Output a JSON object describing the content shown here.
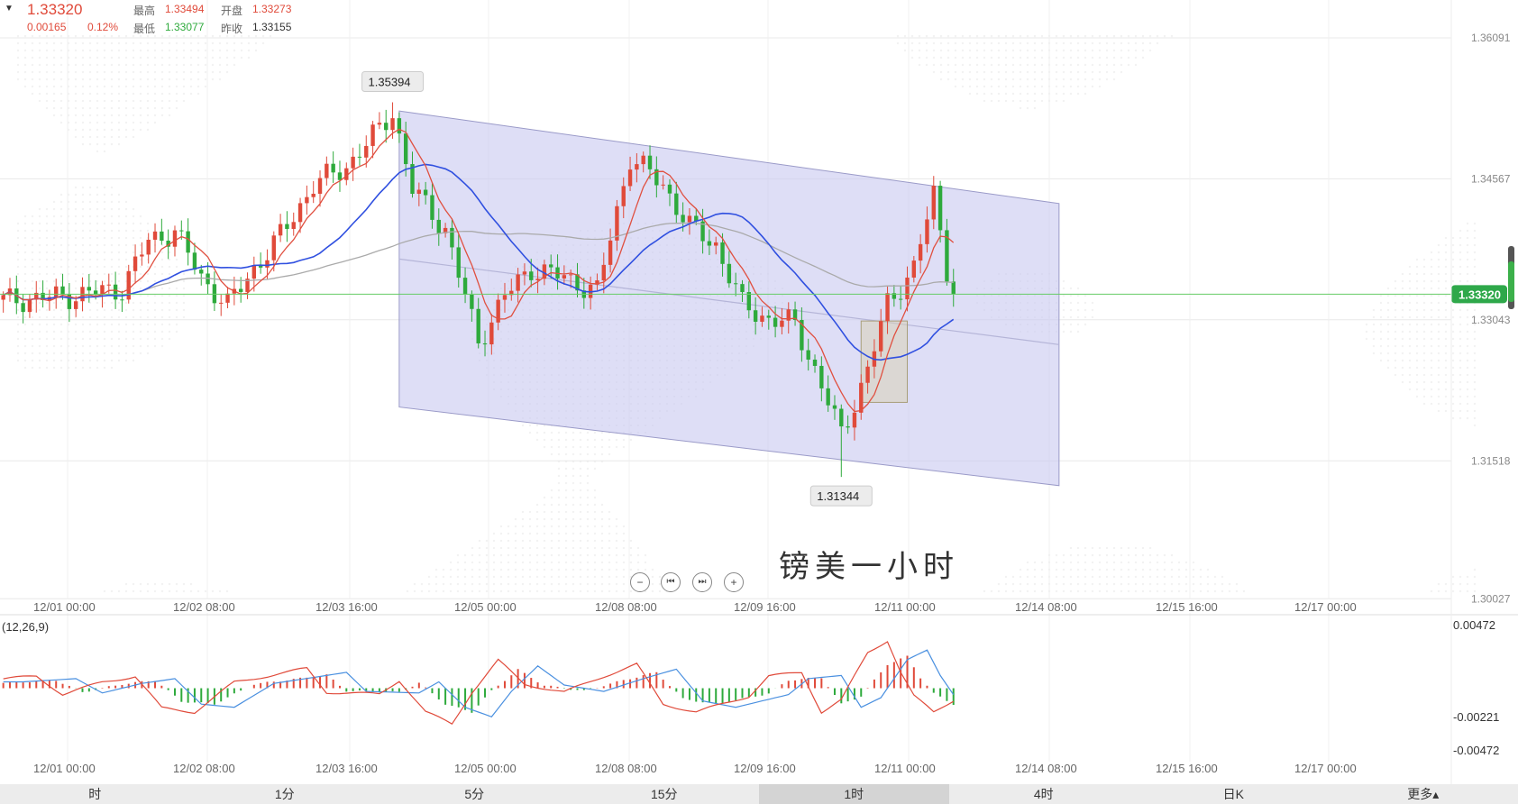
{
  "header": {
    "price": "1.33320",
    "change": "0.00165",
    "change_pct": "0.12%",
    "high_label": "最高",
    "high": "1.33494",
    "open_label": "开盘",
    "open": "1.33273",
    "low_label": "最低",
    "low": "1.33077",
    "prev_close_label": "昨收",
    "prev_close": "1.33155"
  },
  "chart_title": "镑美一小时",
  "price_axis_ticks": [
    "1.36091",
    "1.34567",
    "1.33043",
    "1.31518",
    "1.30027"
  ],
  "current_price_tag": "1.33320",
  "annotations": {
    "high_marker": "1.35394",
    "low_marker": "1.31344"
  },
  "time_labels": [
    "12/01 00:00",
    "12/02 08:00",
    "12/03 16:00",
    "12/05 00:00",
    "12/08 08:00",
    "12/09 16:00",
    "12/11 00:00",
    "12/14 08:00",
    "12/15 16:00",
    "12/17 00:00"
  ],
  "macd": {
    "label": "(12,26,9)",
    "axis_ticks": [
      "0.00472",
      "-0.00221",
      "-0.00472"
    ]
  },
  "controls": {
    "zoom_out": "−",
    "prev": "⏮",
    "next": "⏭",
    "zoom_in": "+"
  },
  "timeframes": [
    {
      "label": "时",
      "active": false
    },
    {
      "label": "1分",
      "active": false
    },
    {
      "label": "5分",
      "active": false
    },
    {
      "label": "15分",
      "active": false
    },
    {
      "label": "1时",
      "active": true
    },
    {
      "label": "4时",
      "active": false
    },
    {
      "label": "日K",
      "active": false
    },
    {
      "label": "更多▴",
      "active": false
    }
  ],
  "colors": {
    "up": "#e04a3a",
    "down": "#2eaa3c",
    "ma_short": "#e05040",
    "ma_mid": "#3050e0",
    "ma_long": "#aaaaaa",
    "channel": "#c8c8f0",
    "price_line": "#66cc66"
  },
  "chart_data": {
    "type": "candlestick",
    "title": "镑美一小时",
    "ylim": [
      1.3003,
      1.365
    ],
    "x_labels": [
      "12/01 00:00",
      "12/02 08:00",
      "12/03 16:00",
      "12/05 00:00",
      "12/08 08:00",
      "12/09 16:00",
      "12/11 00:00",
      "12/14 08:00",
      "12/15 16:00",
      "12/17 00:00"
    ],
    "bar_count": 145,
    "close_anchors": [
      [
        0,
        1.3325
      ],
      [
        10,
        1.333
      ],
      [
        18,
        1.3338
      ],
      [
        22,
        1.339
      ],
      [
        26,
        1.34
      ],
      [
        30,
        1.335
      ],
      [
        34,
        1.332
      ],
      [
        38,
        1.336
      ],
      [
        42,
        1.3395
      ],
      [
        47,
        1.345
      ],
      [
        52,
        1.347
      ],
      [
        57,
        1.351
      ],
      [
        59,
        1.353
      ],
      [
        62,
        1.3445
      ],
      [
        67,
        1.3402
      ],
      [
        72,
        1.328
      ],
      [
        76,
        1.333
      ],
      [
        80,
        1.336
      ],
      [
        85,
        1.335
      ],
      [
        90,
        1.3335
      ],
      [
        95,
        1.348
      ],
      [
        100,
        1.345
      ],
      [
        104,
        1.3405
      ],
      [
        108,
        1.3385
      ],
      [
        112,
        1.332
      ],
      [
        116,
        1.3305
      ],
      [
        120,
        1.33
      ],
      [
        123,
        1.325
      ],
      [
        127,
        1.318
      ],
      [
        131,
        1.325
      ],
      [
        134,
        1.3322
      ],
      [
        138,
        1.336
      ],
      [
        141,
        1.344
      ],
      [
        143,
        1.336
      ],
      [
        144,
        1.333
      ]
    ],
    "extremes": {
      "high": 1.35394,
      "low": 1.31344
    },
    "last_close": 1.3332,
    "channel": {
      "x_range": [
        60,
        160
      ],
      "upper": [
        1.353,
        1.343
      ],
      "lower": [
        1.321,
        1.3125
      ]
    },
    "highlight_box": {
      "x_range": [
        130,
        137
      ],
      "y_range": [
        1.3303,
        1.3215
      ]
    },
    "macd_ylim": [
      -0.0052,
      0.005
    ],
    "macd_hist_anchors": [
      [
        0,
        0.0004
      ],
      [
        8,
        0.0006
      ],
      [
        12,
        -0.0003
      ],
      [
        18,
        0.0003
      ],
      [
        23,
        0.0006
      ],
      [
        27,
        -0.001
      ],
      [
        32,
        -0.0012
      ],
      [
        38,
        0.0003
      ],
      [
        46,
        0.0008
      ],
      [
        49,
        0.001
      ],
      [
        52,
        -0.0002
      ],
      [
        60,
        -0.0003
      ],
      [
        63,
        0.0004
      ],
      [
        67,
        -0.0012
      ],
      [
        71,
        -0.0018
      ],
      [
        74,
        -0.0002
      ],
      [
        78,
        0.0014
      ],
      [
        82,
        0.0002
      ],
      [
        88,
        -0.0002
      ],
      [
        94,
        0.0006
      ],
      [
        99,
        0.0012
      ],
      [
        103,
        -0.0008
      ],
      [
        108,
        -0.0012
      ],
      [
        116,
        -0.0004
      ],
      [
        119,
        0.0006
      ],
      [
        124,
        0.0008
      ],
      [
        127,
        -0.0012
      ],
      [
        130,
        -0.0006
      ],
      [
        134,
        0.0018
      ],
      [
        137,
        0.0024
      ],
      [
        139,
        0.0008
      ],
      [
        141,
        -0.0004
      ],
      [
        144,
        -0.0012
      ],
      [
        148,
        -0.0004
      ]
    ]
  }
}
